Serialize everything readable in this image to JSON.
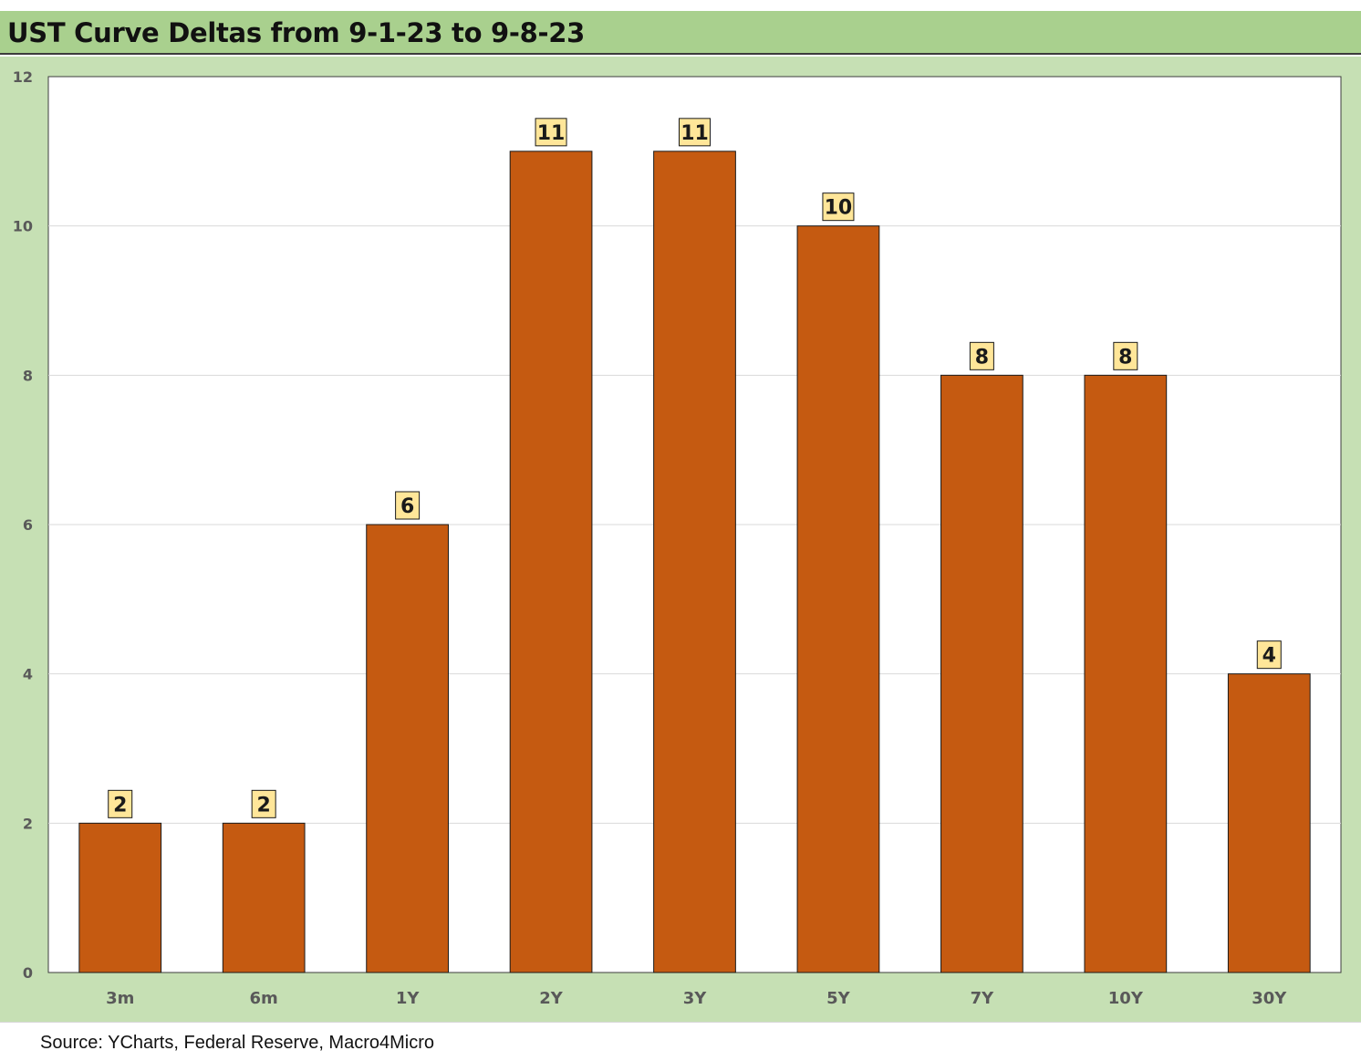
{
  "title": "UST Curve Deltas from 9-1-23 to 9-8-23",
  "source": "Source: YCharts, Federal Reserve, Macro4Micro",
  "colors": {
    "title_bar": "#a9d08e",
    "chart_bg": "#c6e0b4",
    "plot_bg": "#ffffff",
    "bar": "#c55a11",
    "label_box": "#ffe699"
  },
  "chart_data": {
    "type": "bar",
    "categories": [
      "3m",
      "6m",
      "1Y",
      "2Y",
      "3Y",
      "5Y",
      "7Y",
      "10Y",
      "30Y"
    ],
    "values": [
      2,
      2,
      6,
      11,
      11,
      10,
      8,
      8,
      4
    ],
    "ylim": [
      0,
      12
    ],
    "yticks": [
      0,
      2,
      4,
      6,
      8,
      10,
      12
    ],
    "grid": true,
    "legend": "none",
    "data_labels": true
  }
}
